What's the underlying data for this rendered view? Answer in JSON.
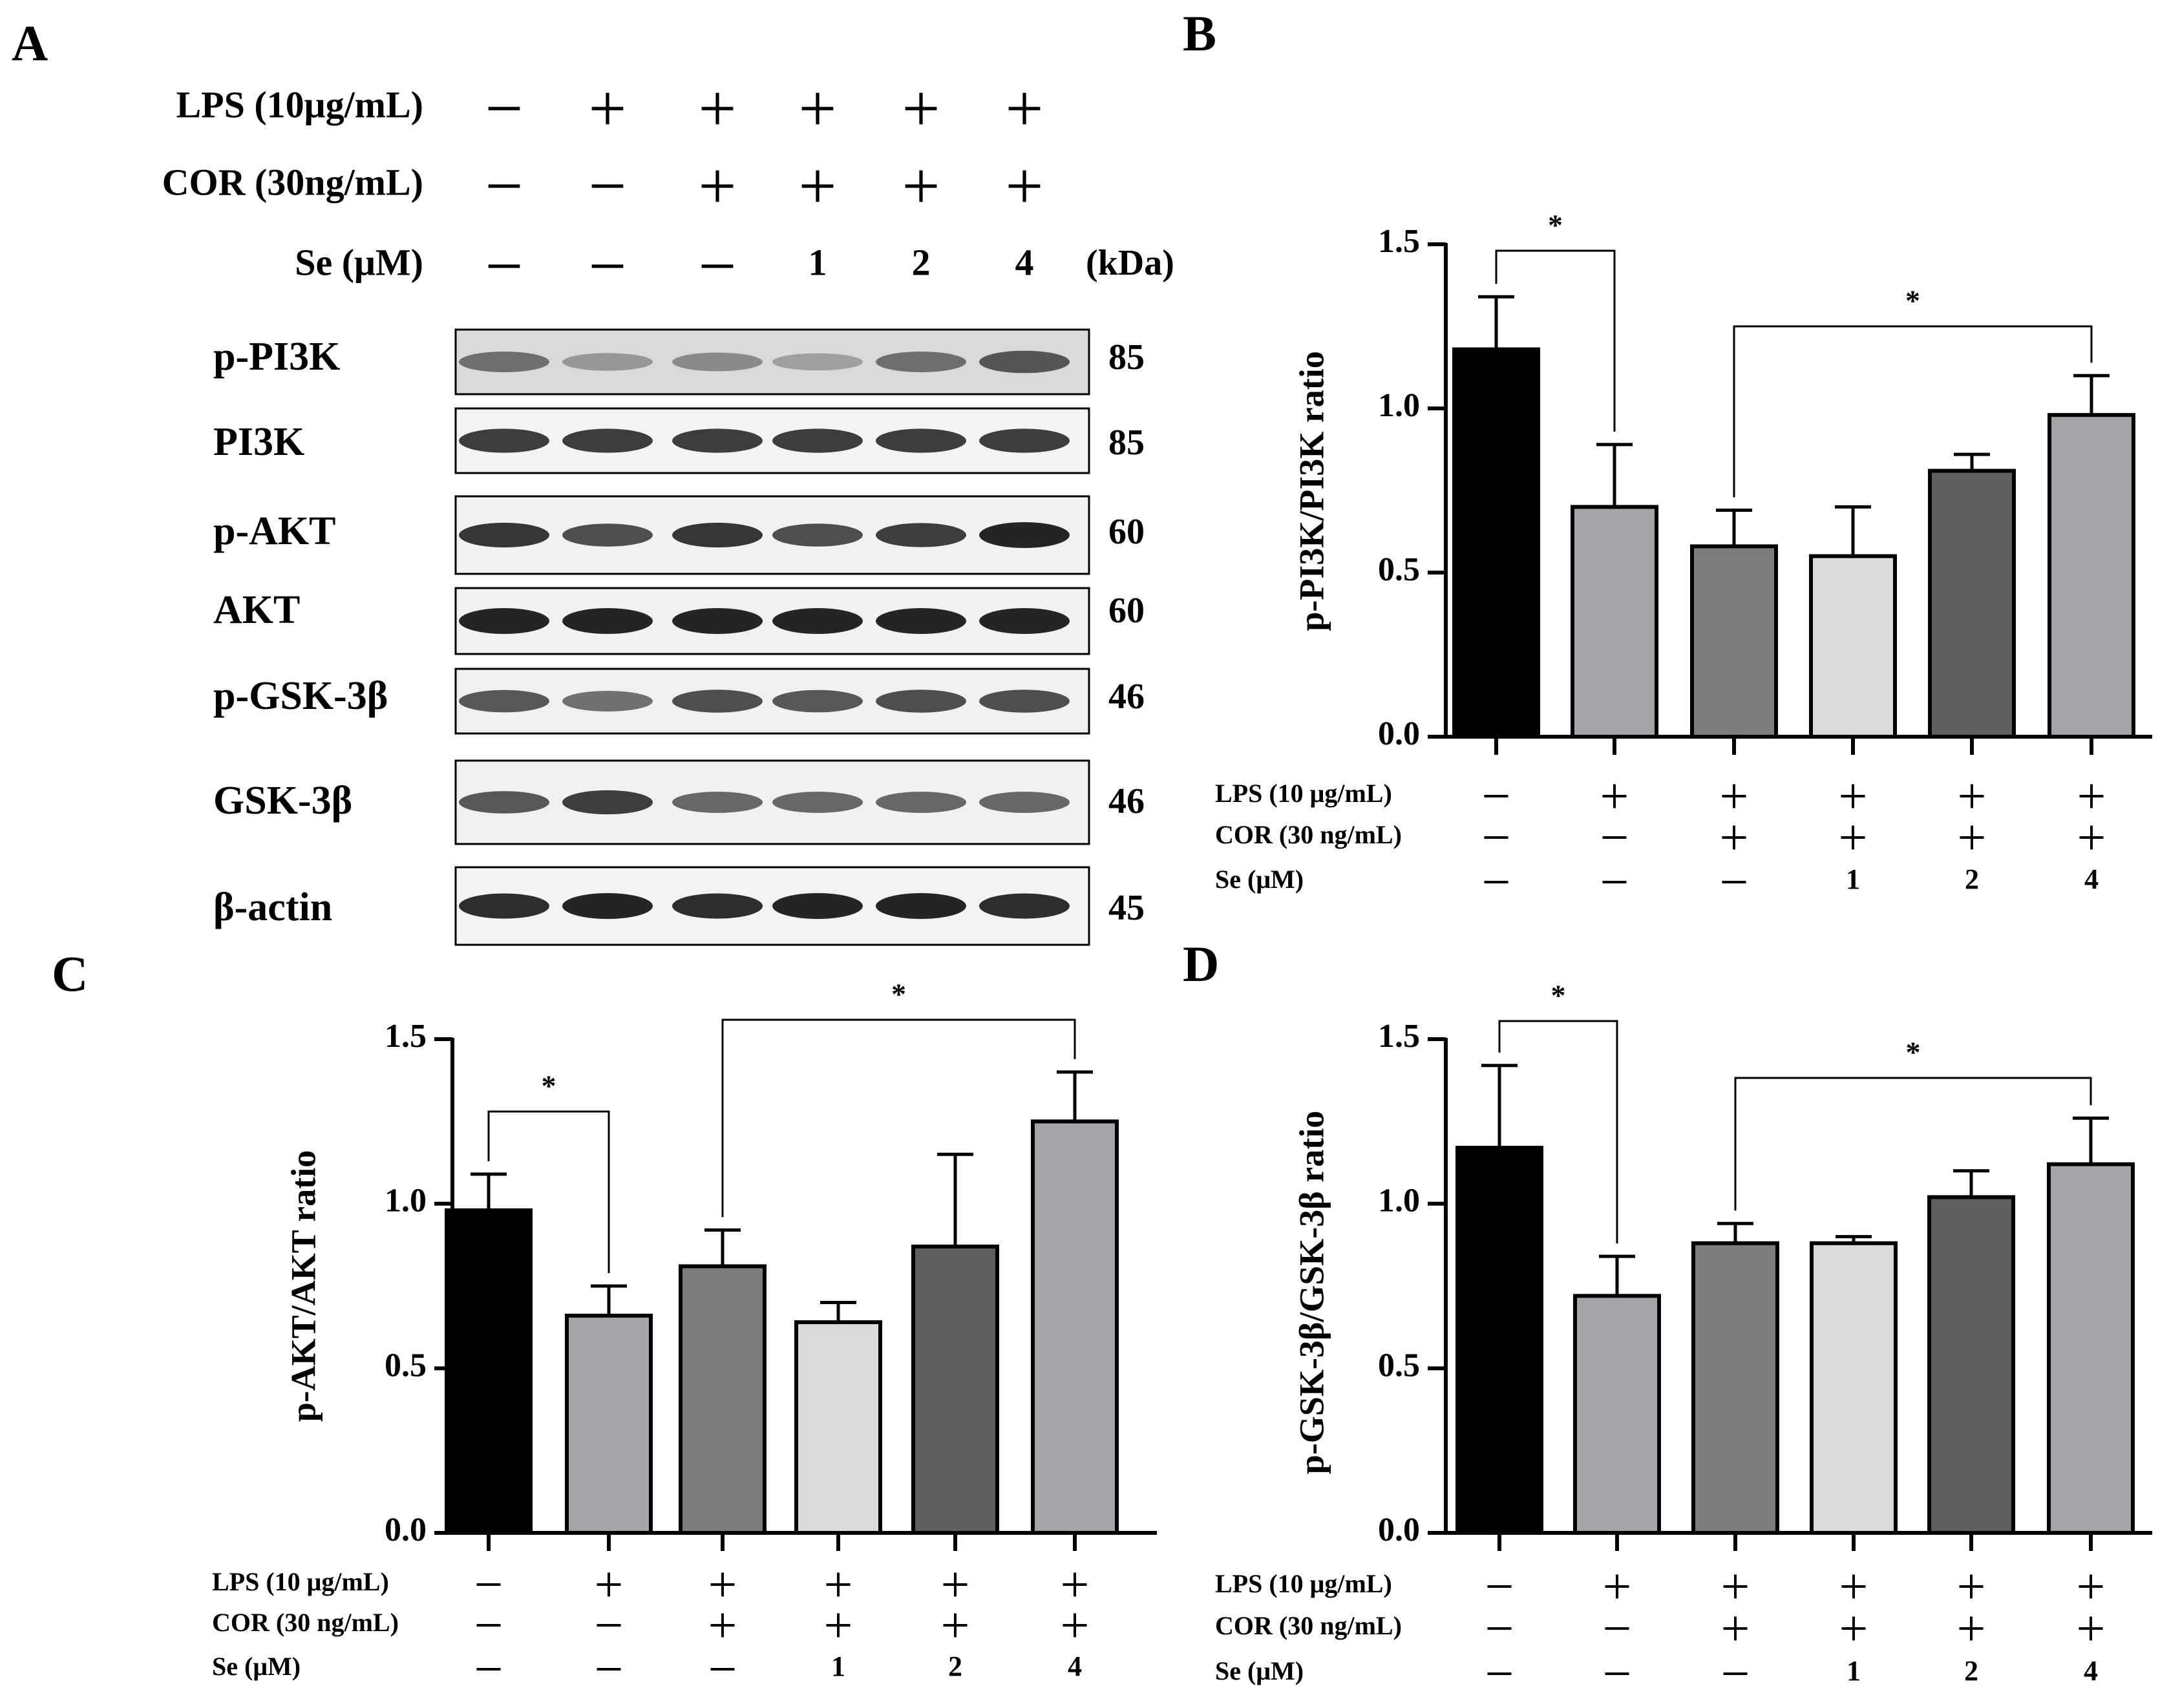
{
  "panel_labels": {
    "a": "A",
    "b": "B",
    "c": "C",
    "d": "D"
  },
  "blot": {
    "treatments": [
      {
        "label": "LPS (10μg/mL)",
        "values": [
          "–",
          "+",
          "+",
          "+",
          "+",
          "+"
        ]
      },
      {
        "label": "COR (30ng/mL)",
        "values": [
          "–",
          "–",
          "+",
          "+",
          "+",
          "+"
        ]
      },
      {
        "label": "Se (μM)",
        "values": [
          "–",
          "–",
          "–",
          "1",
          "2",
          "4"
        ]
      }
    ],
    "kda_header": "(kDa)",
    "rows": [
      {
        "protein": "p-PI3K",
        "kda": "85",
        "intensity": [
          0.55,
          0.3,
          0.38,
          0.25,
          0.55,
          0.7
        ],
        "bg": "#d9d9d9"
      },
      {
        "protein": "PI3K",
        "kda": "85",
        "intensity": [
          0.85,
          0.85,
          0.85,
          0.85,
          0.85,
          0.85
        ],
        "bg": "#f3f3f3"
      },
      {
        "protein": "p-AKT",
        "kda": "60",
        "intensity": [
          0.9,
          0.75,
          0.9,
          0.75,
          0.85,
          1.0
        ],
        "bg": "#f1f1f1"
      },
      {
        "protein": "AKT",
        "kda": "60",
        "intensity": [
          1.0,
          1.0,
          1.0,
          1.0,
          1.0,
          1.0
        ],
        "bg": "#f1f1f1"
      },
      {
        "protein": "p-GSK-3β",
        "kda": "46",
        "intensity": [
          0.7,
          0.55,
          0.75,
          0.7,
          0.75,
          0.75
        ],
        "bg": "#f0f0f0"
      },
      {
        "protein": "GSK-3β",
        "kda": "46",
        "intensity": [
          0.7,
          0.85,
          0.6,
          0.6,
          0.6,
          0.6
        ],
        "bg": "#f0f0f0"
      },
      {
        "protein": "β-actin",
        "kda": "45",
        "intensity": [
          0.95,
          1.0,
          0.95,
          1.0,
          1.0,
          0.95
        ],
        "bg": "#f3f3f3"
      }
    ]
  },
  "chart_data": [
    {
      "id": "B",
      "type": "bar",
      "ylabel": "p-PI3K/PI3K  ratio",
      "ylim": [
        0,
        1.5
      ],
      "yticks": [
        "0.0",
        "0.5",
        "1.0",
        "1.5"
      ],
      "values": [
        1.18,
        0.7,
        0.58,
        0.55,
        0.81,
        0.98
      ],
      "errors": [
        0.16,
        0.19,
        0.11,
        0.15,
        0.05,
        0.12
      ],
      "colors": [
        "#000000",
        "#a3a3a8",
        "#7b7b7b",
        "#d9d9d9",
        "#5e5e5e",
        "#a3a3a8"
      ],
      "significance": [
        {
          "from": 0,
          "to": 1,
          "label": "*"
        },
        {
          "from": 2,
          "to": 5,
          "label": "*"
        }
      ],
      "treatments": [
        {
          "label": "LPS (10 μg/mL)",
          "values": [
            "–",
            "+",
            "+",
            "+",
            "+",
            "+"
          ]
        },
        {
          "label": "COR (30 ng/mL)",
          "values": [
            "–",
            "–",
            "+",
            "+",
            "+",
            "+"
          ]
        },
        {
          "label": "Se  (μM)",
          "values": [
            "–",
            "–",
            "–",
            "1",
            "2",
            "4"
          ]
        }
      ]
    },
    {
      "id": "C",
      "type": "bar",
      "ylabel": "p-AKT/AKT  ratio",
      "ylim": [
        0,
        1.5
      ],
      "yticks": [
        "0.0",
        "0.5",
        "1.0",
        "1.5"
      ],
      "values": [
        0.98,
        0.66,
        0.81,
        0.64,
        0.87,
        1.25
      ],
      "errors": [
        0.11,
        0.09,
        0.11,
        0.06,
        0.28,
        0.15
      ],
      "colors": [
        "#000000",
        "#a3a3a8",
        "#7b7b7b",
        "#d9d9d9",
        "#5e5e5e",
        "#a3a3a8"
      ],
      "significance": [
        {
          "from": 0,
          "to": 1,
          "label": "*"
        },
        {
          "from": 2,
          "to": 5,
          "label": "*"
        }
      ],
      "treatments": [
        {
          "label": "LPS (10 μg/mL)",
          "values": [
            "–",
            "+",
            "+",
            "+",
            "+",
            "+"
          ]
        },
        {
          "label": "COR (30 ng/mL)",
          "values": [
            "–",
            "–",
            "+",
            "+",
            "+",
            "+"
          ]
        },
        {
          "label": "Se  (μM)",
          "values": [
            "–",
            "–",
            "–",
            "1",
            "2",
            "4"
          ]
        }
      ]
    },
    {
      "id": "D",
      "type": "bar",
      "ylabel": "p-GSK-3β/GSK-3β  ratio",
      "ylim": [
        0,
        1.5
      ],
      "yticks": [
        "0.0",
        "0.5",
        "1.0",
        "1.5"
      ],
      "values": [
        1.17,
        0.72,
        0.88,
        0.88,
        1.02,
        1.12
      ],
      "errors": [
        0.25,
        0.12,
        0.06,
        0.02,
        0.08,
        0.14
      ],
      "colors": [
        "#000000",
        "#a3a3a8",
        "#7b7b7b",
        "#d9d9d9",
        "#5e5e5e",
        "#a3a3a8"
      ],
      "significance": [
        {
          "from": 0,
          "to": 1,
          "label": "*"
        },
        {
          "from": 2,
          "to": 5,
          "label": "*"
        }
      ],
      "treatments": [
        {
          "label": "LPS (10 μg/mL)",
          "values": [
            "–",
            "+",
            "+",
            "+",
            "+",
            "+"
          ]
        },
        {
          "label": "COR (30 ng/mL)",
          "values": [
            "–",
            "–",
            "+",
            "+",
            "+",
            "+"
          ]
        },
        {
          "label": "Se  (μM)",
          "values": [
            "–",
            "–",
            "–",
            "1",
            "2",
            "4"
          ]
        }
      ]
    }
  ]
}
